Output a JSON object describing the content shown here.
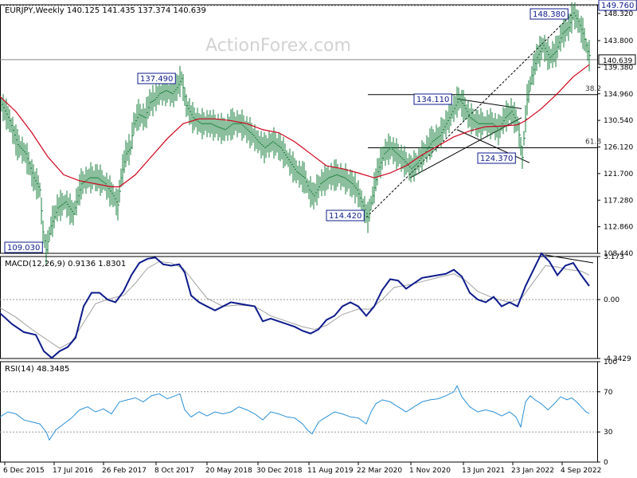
{
  "symbol_header": "EURJPY,Weekly  140.125 141.435 137.374 140.639",
  "watermark": "ActionForex.com",
  "colors": {
    "candle": "#1a7f3c",
    "ma": "#d0021b",
    "macd": "#0d1b8c",
    "signal": "#a0a0a0",
    "rsi": "#2a8fd6",
    "label_border": "#0d1b8c",
    "label_text": "#0d1b8c"
  },
  "chart_data": [
    {
      "type": "line",
      "name": "price",
      "header": "EURJPY,Weekly  140.125 141.435 137.374 140.639",
      "y_ticks": [
        "149.760",
        "148.320",
        "143.800",
        "139.380",
        "134.960",
        "130.540",
        "126.120",
        "121.700",
        "117.280",
        "112.860",
        "108.440"
      ],
      "ylim": [
        108.44,
        149.76
      ],
      "last_price_label": "140.639",
      "close_path": [
        [
          0,
          133.2
        ],
        [
          10,
          130.5
        ],
        [
          20,
          126.5
        ],
        [
          30,
          125
        ],
        [
          40,
          121
        ],
        [
          48,
          119
        ],
        [
          52,
          112
        ],
        [
          56,
          109.03
        ],
        [
          62,
          113
        ],
        [
          70,
          116
        ],
        [
          80,
          117
        ],
        [
          90,
          115
        ],
        [
          100,
          120
        ],
        [
          110,
          121
        ],
        [
          120,
          121
        ],
        [
          130,
          120
        ],
        [
          140,
          118
        ],
        [
          146,
          116.5
        ],
        [
          150,
          121
        ],
        [
          156,
          125
        ],
        [
          162,
          126
        ],
        [
          166,
          130
        ],
        [
          172,
          131.5
        ],
        [
          180,
          131
        ],
        [
          186,
          133.5
        ],
        [
          192,
          134
        ],
        [
          198,
          135
        ],
        [
          206,
          135.5
        ],
        [
          214,
          135
        ],
        [
          220,
          136
        ],
        [
          226,
          137.49
        ],
        [
          232,
          133
        ],
        [
          240,
          131
        ],
        [
          250,
          130
        ],
        [
          262,
          130
        ],
        [
          270,
          129.5
        ],
        [
          280,
          129
        ],
        [
          290,
          130
        ],
        [
          300,
          130
        ],
        [
          308,
          129
        ],
        [
          316,
          128
        ],
        [
          322,
          127
        ],
        [
          330,
          126
        ],
        [
          340,
          127
        ],
        [
          350,
          126
        ],
        [
          360,
          124
        ],
        [
          370,
          122
        ],
        [
          380,
          121
        ],
        [
          386,
          119
        ],
        [
          392,
          118
        ],
        [
          400,
          120
        ],
        [
          410,
          121
        ],
        [
          420,
          121.5
        ],
        [
          430,
          121
        ],
        [
          440,
          120
        ],
        [
          446,
          119
        ],
        [
          452,
          117
        ],
        [
          460,
          114.42
        ],
        [
          466,
          118
        ],
        [
          472,
          122
        ],
        [
          480,
          125
        ],
        [
          488,
          126
        ],
        [
          496,
          125
        ],
        [
          504,
          124
        ],
        [
          514,
          122.5
        ],
        [
          522,
          123.5
        ],
        [
          530,
          125
        ],
        [
          540,
          127
        ],
        [
          550,
          128
        ],
        [
          558,
          130
        ],
        [
          566,
          132
        ],
        [
          574,
          134.11
        ],
        [
          580,
          133
        ],
        [
          588,
          131
        ],
        [
          598,
          130
        ],
        [
          608,
          130
        ],
        [
          616,
          130
        ],
        [
          624,
          129
        ],
        [
          632,
          131
        ],
        [
          640,
          132
        ],
        [
          648,
          130
        ],
        [
          654,
          124.37
        ],
        [
          660,
          134
        ],
        [
          666,
          138
        ],
        [
          672,
          141
        ],
        [
          680,
          143
        ],
        [
          688,
          141
        ],
        [
          696,
          142
        ],
        [
          704,
          145
        ],
        [
          712,
          146
        ],
        [
          718,
          148.38
        ],
        [
          724,
          147
        ],
        [
          730,
          145
        ],
        [
          736,
          142
        ],
        [
          740,
          140.639
        ]
      ],
      "ma_path": [
        [
          0,
          134.5
        ],
        [
          20,
          132
        ],
        [
          40,
          128.5
        ],
        [
          60,
          124.5
        ],
        [
          80,
          121.5
        ],
        [
          100,
          120.5
        ],
        [
          120,
          120
        ],
        [
          140,
          119.5
        ],
        [
          150,
          119.5
        ],
        [
          170,
          121.5
        ],
        [
          190,
          124.5
        ],
        [
          210,
          127.5
        ],
        [
          230,
          130
        ],
        [
          250,
          130.8
        ],
        [
          270,
          130.8
        ],
        [
          290,
          130.5
        ],
        [
          310,
          130
        ],
        [
          330,
          129
        ],
        [
          350,
          128.5
        ],
        [
          370,
          127
        ],
        [
          390,
          125
        ],
        [
          410,
          123
        ],
        [
          430,
          122.5
        ],
        [
          450,
          121.8
        ],
        [
          470,
          121
        ],
        [
          490,
          121.8
        ],
        [
          510,
          123
        ],
        [
          530,
          124.8
        ],
        [
          550,
          126.3
        ],
        [
          570,
          127.8
        ],
        [
          590,
          128.8
        ],
        [
          610,
          129.5
        ],
        [
          630,
          129.6
        ],
        [
          650,
          129.8
        ],
        [
          660,
          130.5
        ],
        [
          680,
          132.5
        ],
        [
          700,
          135
        ],
        [
          720,
          137.8
        ],
        [
          740,
          139.8
        ]
      ],
      "annotations": {
        "high_1": "137.490",
        "low_1": "109.030",
        "low_2": "114.420",
        "high_2": "134.110",
        "low_3": "124.370",
        "high_3": "148.380",
        "top_label": "149.760",
        "fib_382": "38.2",
        "fib_618": "61.8"
      },
      "x_ticks": [
        "6 Dec 2015",
        "17 Jul 2016",
        "26 Feb 2017",
        "8 Oct 2017",
        "20 May 2018",
        "30 Dec 2018",
        "11 Aug 2019",
        "22 Mar 2020",
        "1 Nov 2020",
        "13 Jun 2021",
        "23 Jan 2022",
        "4 Sep 2022"
      ]
    },
    {
      "type": "line",
      "name": "macd",
      "header": "MACD(12,26,9) 0.9136 1.8301",
      "y_ticks": [
        "3.173",
        "0.00",
        "-4.3429"
      ],
      "ylim": [
        -4.3429,
        3.173
      ],
      "macd_path": [
        [
          0,
          -1.0
        ],
        [
          15,
          -1.8
        ],
        [
          30,
          -2.4
        ],
        [
          45,
          -2.6
        ],
        [
          55,
          -3.8
        ],
        [
          65,
          -4.3
        ],
        [
          75,
          -3.8
        ],
        [
          85,
          -3.5
        ],
        [
          95,
          -2.8
        ],
        [
          105,
          -0.5
        ],
        [
          115,
          0.5
        ],
        [
          125,
          0.5
        ],
        [
          135,
          0
        ],
        [
          145,
          -0.2
        ],
        [
          155,
          0.6
        ],
        [
          165,
          1.8
        ],
        [
          175,
          2.7
        ],
        [
          185,
          3.0
        ],
        [
          195,
          3.1
        ],
        [
          205,
          2.6
        ],
        [
          215,
          2.5
        ],
        [
          225,
          2.6
        ],
        [
          232,
          2.0
        ],
        [
          240,
          0.3
        ],
        [
          250,
          -0.2
        ],
        [
          260,
          -0.5
        ],
        [
          270,
          -0.8
        ],
        [
          280,
          -0.5
        ],
        [
          290,
          -0.2
        ],
        [
          300,
          -0.3
        ],
        [
          310,
          -0.4
        ],
        [
          320,
          -0.5
        ],
        [
          330,
          -1.6
        ],
        [
          340,
          -1.4
        ],
        [
          350,
          -1.6
        ],
        [
          360,
          -1.8
        ],
        [
          370,
          -2.0
        ],
        [
          380,
          -2.3
        ],
        [
          390,
          -2.5
        ],
        [
          400,
          -2.2
        ],
        [
          410,
          -1.5
        ],
        [
          420,
          -1.2
        ],
        [
          430,
          -0.5
        ],
        [
          440,
          -0.2
        ],
        [
          450,
          -0.5
        ],
        [
          460,
          -1.2
        ],
        [
          470,
          -0.5
        ],
        [
          480,
          0.7
        ],
        [
          490,
          1.5
        ],
        [
          500,
          1.4
        ],
        [
          510,
          0.8
        ],
        [
          520,
          1.2
        ],
        [
          530,
          1.6
        ],
        [
          540,
          1.7
        ],
        [
          550,
          1.8
        ],
        [
          560,
          1.9
        ],
        [
          570,
          2.2
        ],
        [
          580,
          1.7
        ],
        [
          590,
          0.5
        ],
        [
          600,
          0
        ],
        [
          610,
          -0.2
        ],
        [
          620,
          0.2
        ],
        [
          630,
          -0.5
        ],
        [
          640,
          -0.2
        ],
        [
          650,
          -0.5
        ],
        [
          660,
          1.0
        ],
        [
          670,
          2.2
        ],
        [
          680,
          3.4
        ],
        [
          690,
          2.8
        ],
        [
          700,
          1.8
        ],
        [
          710,
          2.5
        ],
        [
          720,
          2.7
        ],
        [
          730,
          1.8
        ],
        [
          740,
          1.0
        ]
      ],
      "signal_path": [
        [
          0,
          -0.6
        ],
        [
          20,
          -1.3
        ],
        [
          40,
          -2.2
        ],
        [
          60,
          -3.0
        ],
        [
          75,
          -3.6
        ],
        [
          90,
          -3.1
        ],
        [
          105,
          -1.7
        ],
        [
          120,
          -0.3
        ],
        [
          140,
          0.1
        ],
        [
          155,
          0.3
        ],
        [
          170,
          1.2
        ],
        [
          185,
          2.3
        ],
        [
          200,
          2.8
        ],
        [
          215,
          2.7
        ],
        [
          230,
          2.3
        ],
        [
          245,
          1.2
        ],
        [
          260,
          0.1
        ],
        [
          280,
          -0.5
        ],
        [
          300,
          -0.4
        ],
        [
          320,
          -0.5
        ],
        [
          340,
          -1.2
        ],
        [
          360,
          -1.6
        ],
        [
          380,
          -2.0
        ],
        [
          395,
          -2.2
        ],
        [
          410,
          -1.9
        ],
        [
          430,
          -1.1
        ],
        [
          450,
          -0.7
        ],
        [
          465,
          -0.7
        ],
        [
          480,
          0
        ],
        [
          495,
          0.9
        ],
        [
          515,
          1.1
        ],
        [
          535,
          1.4
        ],
        [
          555,
          1.7
        ],
        [
          570,
          1.9
        ],
        [
          585,
          1.4
        ],
        [
          600,
          0.6
        ],
        [
          620,
          0.1
        ],
        [
          640,
          -0.2
        ],
        [
          655,
          0.1
        ],
        [
          670,
          1.3
        ],
        [
          685,
          2.5
        ],
        [
          700,
          2.4
        ],
        [
          715,
          2.2
        ],
        [
          730,
          2.1
        ],
        [
          740,
          1.8
        ]
      ]
    },
    {
      "type": "line",
      "name": "rsi",
      "header": "RSI(14) 48.3485",
      "y_ticks": [
        "100",
        "70",
        "30",
        "0"
      ],
      "ylim": [
        0,
        100
      ],
      "rsi_path": [
        [
          0,
          45
        ],
        [
          10,
          50
        ],
        [
          20,
          48
        ],
        [
          30,
          42
        ],
        [
          40,
          40
        ],
        [
          50,
          38
        ],
        [
          58,
          30
        ],
        [
          62,
          22
        ],
        [
          70,
          32
        ],
        [
          80,
          38
        ],
        [
          90,
          44
        ],
        [
          100,
          52
        ],
        [
          110,
          55
        ],
        [
          120,
          50
        ],
        [
          130,
          53
        ],
        [
          140,
          48
        ],
        [
          150,
          60
        ],
        [
          160,
          62
        ],
        [
          170,
          64
        ],
        [
          180,
          60
        ],
        [
          190,
          66
        ],
        [
          200,
          68
        ],
        [
          210,
          63
        ],
        [
          220,
          66
        ],
        [
          226,
          68
        ],
        [
          232,
          52
        ],
        [
          240,
          45
        ],
        [
          250,
          50
        ],
        [
          260,
          46
        ],
        [
          270,
          50
        ],
        [
          280,
          48
        ],
        [
          290,
          50
        ],
        [
          300,
          55
        ],
        [
          310,
          52
        ],
        [
          320,
          48
        ],
        [
          330,
          42
        ],
        [
          340,
          50
        ],
        [
          350,
          48
        ],
        [
          360,
          45
        ],
        [
          370,
          44
        ],
        [
          380,
          38
        ],
        [
          386,
          32
        ],
        [
          392,
          28
        ],
        [
          400,
          40
        ],
        [
          410,
          45
        ],
        [
          420,
          50
        ],
        [
          430,
          48
        ],
        [
          440,
          45
        ],
        [
          450,
          44
        ],
        [
          460,
          38
        ],
        [
          466,
          50
        ],
        [
          472,
          58
        ],
        [
          480,
          62
        ],
        [
          490,
          60
        ],
        [
          500,
          55
        ],
        [
          510,
          50
        ],
        [
          520,
          55
        ],
        [
          530,
          60
        ],
        [
          540,
          62
        ],
        [
          550,
          63
        ],
        [
          560,
          66
        ],
        [
          570,
          70
        ],
        [
          574,
          76
        ],
        [
          580,
          65
        ],
        [
          590,
          55
        ],
        [
          600,
          50
        ],
        [
          610,
          52
        ],
        [
          620,
          50
        ],
        [
          630,
          46
        ],
        [
          640,
          50
        ],
        [
          648,
          45
        ],
        [
          654,
          35
        ],
        [
          660,
          60
        ],
        [
          666,
          66
        ],
        [
          672,
          62
        ],
        [
          680,
          58
        ],
        [
          688,
          52
        ],
        [
          696,
          58
        ],
        [
          704,
          65
        ],
        [
          712,
          62
        ],
        [
          718,
          64
        ],
        [
          724,
          60
        ],
        [
          730,
          55
        ],
        [
          736,
          50
        ],
        [
          740,
          48.3485
        ]
      ]
    }
  ]
}
